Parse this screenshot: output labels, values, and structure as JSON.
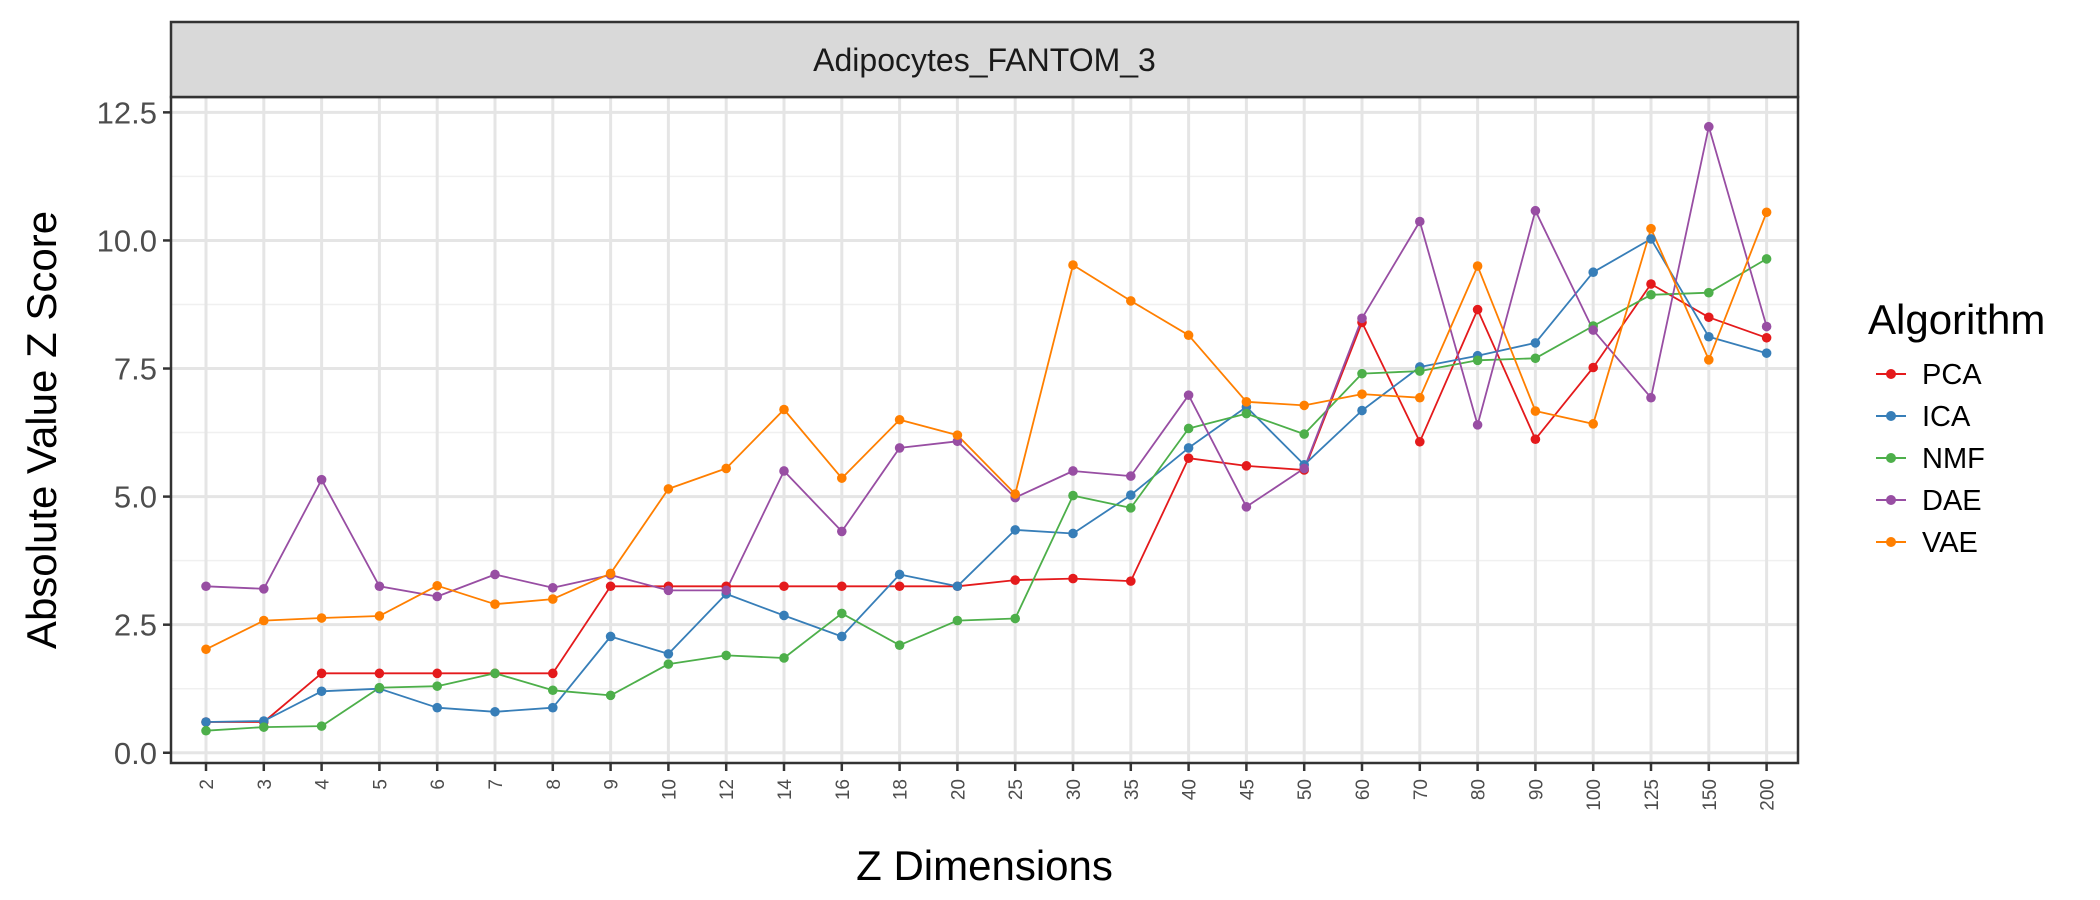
{
  "chart_data": {
    "type": "line",
    "title": "",
    "facet_label": "Adipocytes_FANTOM_3",
    "xlabel": "Z Dimensions",
    "ylabel": "Absolute Value Z Score",
    "ylim": [
      -0.2,
      12.8
    ],
    "yticks": [
      "0.0",
      "2.5",
      "5.0",
      "7.5",
      "10.0",
      "12.5"
    ],
    "grid": true,
    "legend": {
      "title": "Algorithm",
      "position": "right"
    },
    "categories": [
      "2",
      "3",
      "4",
      "5",
      "6",
      "7",
      "8",
      "9",
      "10",
      "12",
      "14",
      "16",
      "18",
      "20",
      "25",
      "30",
      "35",
      "40",
      "45",
      "50",
      "60",
      "70",
      "80",
      "90",
      "100",
      "125",
      "150",
      "200"
    ],
    "series": [
      {
        "name": "PCA",
        "color": "#E41A1C",
        "values": [
          0.6,
          0.6,
          1.55,
          1.55,
          1.55,
          1.55,
          1.55,
          3.25,
          3.25,
          3.25,
          3.25,
          3.25,
          3.25,
          3.25,
          3.37,
          3.4,
          3.35,
          5.75,
          5.6,
          5.52,
          8.4,
          6.07,
          8.65,
          6.12,
          7.52,
          9.15,
          8.5,
          8.1
        ]
      },
      {
        "name": "ICA",
        "color": "#377EB8",
        "values": [
          0.6,
          0.62,
          1.2,
          1.25,
          0.88,
          0.8,
          0.88,
          2.27,
          1.93,
          3.1,
          2.68,
          2.27,
          3.48,
          3.25,
          4.35,
          4.28,
          5.03,
          5.95,
          6.75,
          5.62,
          6.68,
          7.53,
          7.75,
          8.0,
          9.38,
          10.03,
          8.12,
          7.8
        ]
      },
      {
        "name": "NMF",
        "color": "#4DAF4A",
        "values": [
          0.43,
          0.5,
          0.52,
          1.27,
          1.3,
          1.55,
          1.22,
          1.12,
          1.73,
          1.9,
          1.85,
          2.72,
          2.1,
          2.58,
          2.62,
          5.02,
          4.78,
          6.33,
          6.62,
          6.22,
          7.4,
          7.45,
          7.66,
          7.7,
          8.33,
          8.94,
          8.98,
          9.64
        ]
      },
      {
        "name": "DAE",
        "color": "#984EA3",
        "values": [
          3.25,
          3.2,
          5.33,
          3.25,
          3.05,
          3.48,
          3.22,
          3.47,
          3.17,
          3.17,
          5.5,
          4.32,
          5.95,
          6.08,
          4.98,
          5.5,
          5.4,
          6.98,
          4.8,
          5.55,
          8.48,
          10.37,
          6.4,
          10.58,
          8.25,
          6.93,
          12.22,
          8.32
        ]
      },
      {
        "name": "VAE",
        "color": "#FF7F00",
        "values": [
          2.02,
          2.58,
          2.63,
          2.67,
          3.26,
          2.9,
          3.0,
          3.5,
          5.15,
          5.55,
          6.7,
          5.36,
          6.5,
          6.2,
          5.05,
          9.52,
          8.82,
          8.15,
          6.85,
          6.78,
          7.0,
          6.93,
          9.5,
          6.67,
          6.42,
          10.23,
          7.67,
          10.55
        ]
      }
    ]
  }
}
